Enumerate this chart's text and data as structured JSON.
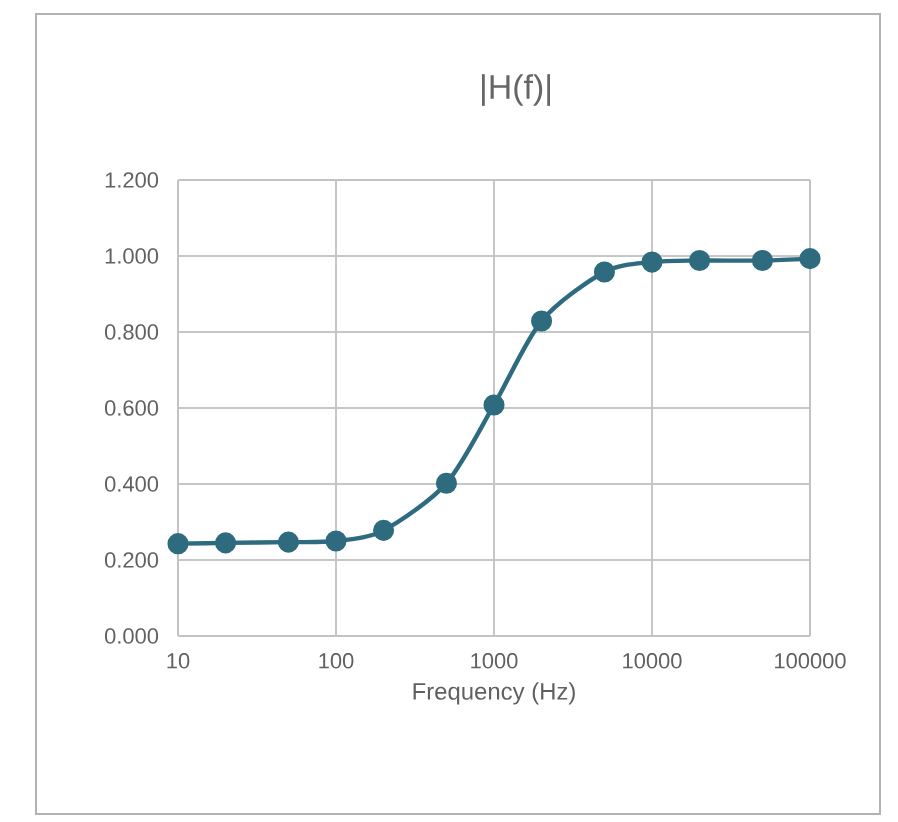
{
  "chart_data": {
    "type": "line",
    "title": "|H(f)|",
    "xlabel": "Frequency (Hz)",
    "log": "x",
    "grid": true,
    "marker": "circle",
    "line_style": "solid",
    "xlim": [
      10,
      100000
    ],
    "xticks": [
      10,
      100,
      1000,
      10000,
      100000
    ],
    "ylim": [
      0,
      1.2
    ],
    "yticks": [
      {
        "value": 0,
        "label": "0.000"
      },
      {
        "value": 0.2,
        "label": "0.200"
      },
      {
        "value": 0.4,
        "label": "0.400"
      },
      {
        "value": 0.6,
        "label": "0.600"
      },
      {
        "value": 0.8,
        "label": "0.800"
      },
      {
        "value": 1,
        "label": "1.000"
      },
      {
        "value": 1.2,
        "label": "1.200"
      }
    ],
    "x": [
      10,
      20,
      50,
      100,
      200,
      500,
      1000,
      2000,
      5000,
      10000,
      20000,
      50000,
      100000
    ],
    "series": [
      {
        "color": "#2e6b7e",
        "values": [
          0.243,
          0.245,
          0.247,
          0.25,
          0.278,
          0.402,
          0.608,
          0.829,
          0.958,
          0.984,
          0.988,
          0.988,
          0.993
        ]
      }
    ]
  }
}
